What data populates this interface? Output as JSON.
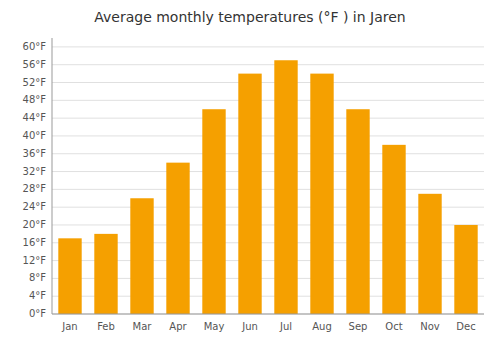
{
  "chart_data": {
    "type": "bar",
    "title": "Average monthly temperatures (°F ) in Jaren",
    "categories": [
      "Jan",
      "Feb",
      "Mar",
      "Apr",
      "May",
      "Jun",
      "Jul",
      "Aug",
      "Sep",
      "Oct",
      "Nov",
      "Dec"
    ],
    "values": [
      17,
      18,
      26,
      34,
      46,
      54,
      57,
      54,
      46,
      38,
      27,
      20
    ],
    "color": "#F5A000",
    "ylim": [
      0,
      62
    ],
    "yticks": [
      {
        "value": 0,
        "label": "0°F"
      },
      {
        "value": 4,
        "label": "4°F"
      },
      {
        "value": 8,
        "label": "8°F"
      },
      {
        "value": 12,
        "label": "12°F"
      },
      {
        "value": 16,
        "label": "16°F"
      },
      {
        "value": 20,
        "label": "20°F"
      },
      {
        "value": 24,
        "label": "24°F"
      },
      {
        "value": 28,
        "label": "28°F"
      },
      {
        "value": 32,
        "label": "32°F"
      },
      {
        "value": 36,
        "label": "36°F"
      },
      {
        "value": 40,
        "label": "40°F"
      },
      {
        "value": 44,
        "label": "44°F"
      },
      {
        "value": 48,
        "label": "48°F"
      },
      {
        "value": 52,
        "label": "52°F"
      },
      {
        "value": 56,
        "label": "56°F"
      },
      {
        "value": 60,
        "label": "60°F"
      }
    ],
    "grid": true
  }
}
